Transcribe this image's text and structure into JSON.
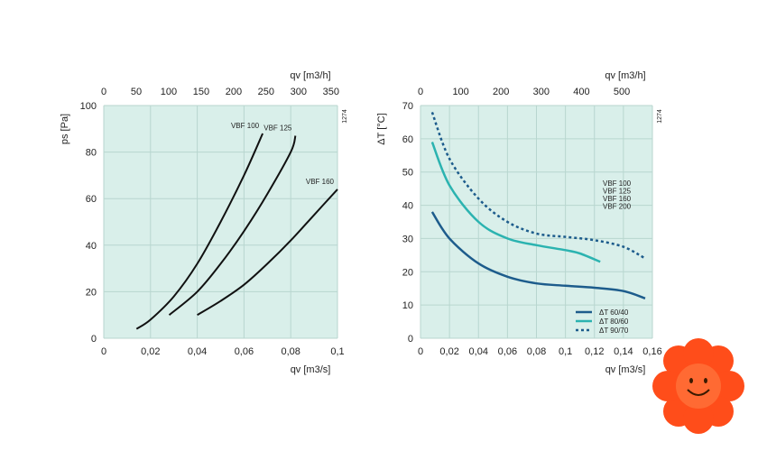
{
  "chart_data": [
    {
      "type": "line",
      "title": "",
      "xlabel": "qv [m3/s]",
      "x2label": "qv [m3/h]",
      "ylabel": "ps [Pa]",
      "code": "1274",
      "xlim": [
        0,
        0.1
      ],
      "ylim": [
        0,
        100
      ],
      "x2lim": [
        0,
        360
      ],
      "xticks": [
        0,
        0.02,
        0.04,
        0.06,
        0.08,
        0.1
      ],
      "xtick_labels": [
        "0",
        "0,02",
        "0,04",
        "0,06",
        "0,08",
        "0,1"
      ],
      "x2ticks": [
        0,
        50,
        100,
        150,
        200,
        250,
        300,
        350
      ],
      "x2tick_labels": [
        "0",
        "50",
        "100",
        "150",
        "200",
        "250",
        "300",
        "350"
      ],
      "yticks": [
        0,
        20,
        40,
        60,
        80,
        100
      ],
      "ytick_labels": [
        "0",
        "20",
        "40",
        "60",
        "80",
        "100"
      ],
      "grid": true,
      "series": [
        {
          "name": "VBF 100",
          "x": [
            0.014,
            0.02,
            0.03,
            0.04,
            0.05,
            0.06,
            0.068
          ],
          "y": [
            4,
            8,
            18,
            32,
            50,
            70,
            88
          ]
        },
        {
          "name": "VBF 125",
          "x": [
            0.028,
            0.04,
            0.05,
            0.06,
            0.07,
            0.08,
            0.082
          ],
          "y": [
            10,
            20,
            32,
            46,
            62,
            80,
            87
          ]
        },
        {
          "name": "VBF 160",
          "x": [
            0.04,
            0.05,
            0.06,
            0.07,
            0.08,
            0.09,
            0.1
          ],
          "y": [
            10,
            16,
            23,
            32,
            42,
            53,
            64
          ]
        }
      ]
    },
    {
      "type": "line",
      "title": "",
      "xlabel": "qv [m3/s]",
      "x2label": "qv [m3/h]",
      "ylabel": "ΔT [°C]",
      "code": "1274",
      "xlim": [
        0,
        0.16
      ],
      "ylim": [
        0,
        70
      ],
      "x2lim": [
        0,
        576
      ],
      "xticks": [
        0,
        0.02,
        0.04,
        0.06,
        0.08,
        0.1,
        0.12,
        0.14,
        0.16
      ],
      "xtick_labels": [
        "0",
        "0,02",
        "0,04",
        "0,06",
        "0,08",
        "0,1",
        "0,12",
        "0,14",
        "0,16"
      ],
      "x2ticks": [
        0,
        100,
        200,
        300,
        400,
        500
      ],
      "x2tick_labels": [
        "0",
        "100",
        "200",
        "300",
        "400",
        "500"
      ],
      "yticks": [
        0,
        10,
        20,
        30,
        40,
        50,
        60,
        70
      ],
      "ytick_labels": [
        "0",
        "10",
        "20",
        "30",
        "40",
        "50",
        "60",
        "70"
      ],
      "grid": true,
      "models": [
        "VBF 100",
        "VBF 125",
        "VBF 160",
        "VBF 200"
      ],
      "legend_position": "bottom-right",
      "series": [
        {
          "name": "ΔT 60/40",
          "style": "solid",
          "color": "#1d5c8c",
          "x": [
            0.008,
            0.02,
            0.04,
            0.06,
            0.08,
            0.1,
            0.12,
            0.14,
            0.155
          ],
          "y": [
            38,
            30,
            22.5,
            18.5,
            16.5,
            15.8,
            15.2,
            14.2,
            12
          ]
        },
        {
          "name": "ΔT 80/60",
          "style": "solid",
          "color": "#2bb3b0",
          "x": [
            0.008,
            0.02,
            0.04,
            0.06,
            0.08,
            0.1,
            0.11,
            0.124
          ],
          "y": [
            59,
            46,
            35,
            30,
            28,
            26.5,
            25.5,
            23
          ]
        },
        {
          "name": "ΔT 90/70",
          "style": "dotted",
          "color": "#1d5c8c",
          "x": [
            0.008,
            0.02,
            0.04,
            0.06,
            0.08,
            0.1,
            0.12,
            0.14,
            0.155
          ],
          "y": [
            68,
            54,
            42,
            35,
            31.5,
            30.5,
            29.5,
            27.5,
            24
          ]
        }
      ]
    }
  ]
}
